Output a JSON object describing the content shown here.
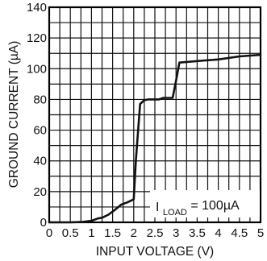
{
  "chart_data": {
    "type": "line",
    "xlabel": "INPUT VOLTAGE (V)",
    "ylabel": "GROUND CURRENT (µA)",
    "xlim": [
      0,
      5
    ],
    "ylim": [
      0,
      140
    ],
    "x_ticks": [
      "0",
      "0.5",
      "1",
      "1.5",
      "2",
      "2.5",
      "3",
      "3.5",
      "4",
      "4.5",
      "5"
    ],
    "y_ticks": [
      "0",
      "20",
      "40",
      "60",
      "80",
      "100",
      "120",
      "140"
    ],
    "grid": true,
    "annotation": {
      "main": "I",
      "subscript": "LOAD",
      "rest": " = 100µA"
    },
    "series": [
      {
        "x": [
          0,
          0.5,
          0.8,
          1.0,
          1.15,
          1.25,
          1.4,
          1.55,
          1.7,
          1.85,
          2.0,
          2.05,
          2.15,
          2.25,
          2.35,
          2.5,
          2.6,
          2.7,
          2.8,
          2.92,
          3.0,
          3.08,
          3.5,
          4.0,
          4.5,
          5.0
        ],
        "y": [
          0,
          0,
          0.3,
          1.0,
          2.5,
          3.0,
          5.0,
          8.0,
          11.5,
          13.0,
          15.0,
          40.0,
          77.0,
          79.5,
          80.0,
          80.0,
          80.0,
          81.0,
          81.0,
          81.0,
          92.0,
          104.0,
          105.0,
          106.0,
          108.0,
          109.0
        ]
      }
    ]
  }
}
